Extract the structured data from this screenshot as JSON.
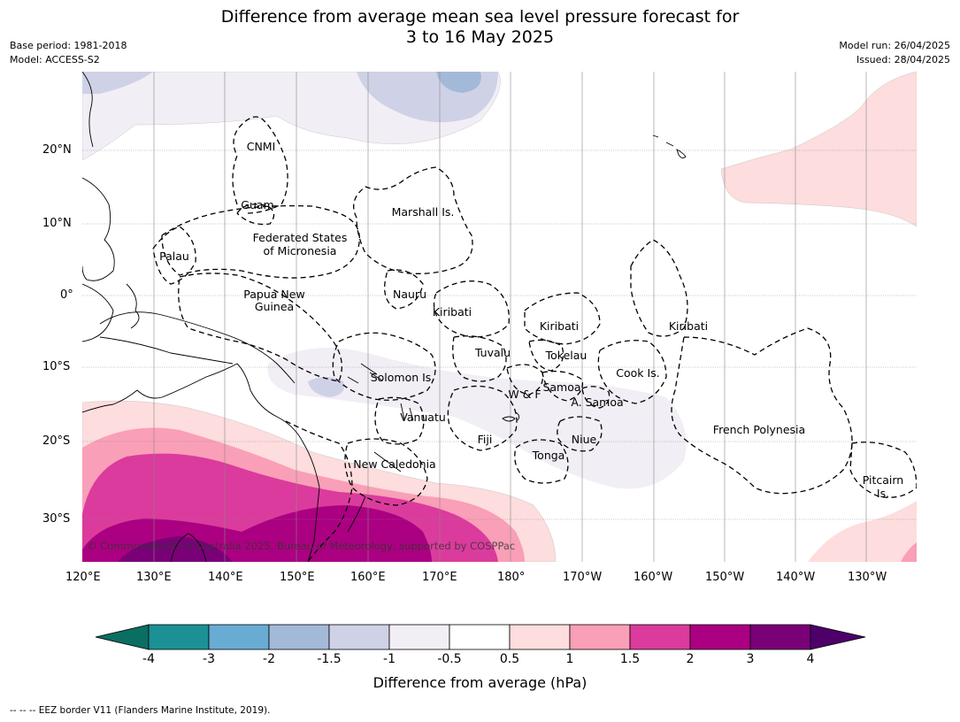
{
  "title": {
    "line1": "Difference from average mean sea level pressure forecast for",
    "line2": "3 to 16 May 2025"
  },
  "meta": {
    "base_period": "Base period: 1981-2018",
    "model": "Model: ACCESS-S2",
    "model_run": "Model run: 26/04/2025",
    "issued": "Issued: 28/04/2025"
  },
  "map": {
    "lon_labels": [
      "120°E",
      "130°E",
      "140°E",
      "150°E",
      "160°E",
      "170°E",
      "180°",
      "170°W",
      "160°W",
      "150°W",
      "140°W",
      "130°W"
    ],
    "lat_labels": [
      "20°N",
      "10°N",
      "0°",
      "10°S",
      "20°S",
      "30°S"
    ],
    "places": [
      "CNMI",
      "Guam",
      "Marshall Is.",
      "Palau",
      "Federated States",
      "of Micronesia",
      "Papua New",
      "Guinea",
      "Nauru",
      "Kiribati",
      "Kiribati",
      "Kiribati",
      "Tuvalu",
      "Tokelau",
      "Cook Is.",
      "Samoa",
      "W & F",
      "A. Samoa",
      "Solomon Is.",
      "Vanuatu",
      "Fiji",
      "Niue",
      "Tonga",
      "French Polynesia",
      "New Caledonia",
      "Pitcairn",
      "Is."
    ],
    "copyright": "© Commonwealth of Australia 2025, Bureau of Meteorology, supported by COSPPac"
  },
  "colorbar": {
    "ticks": [
      "-4",
      "-3",
      "-2",
      "-1.5",
      "-1",
      "-0.5",
      "0.5",
      "1",
      "1.5",
      "2",
      "3",
      "4"
    ],
    "colors": [
      "#0b6e63",
      "#1b9196",
      "#68acd4",
      "#a3b9d8",
      "#cfd1e6",
      "#f2eef5",
      "#ffffff",
      "#fddddd",
      "#f99fb7",
      "#db3b9c",
      "#ab0081",
      "#7a0077",
      "#4d006a"
    ],
    "label": "Difference from average (hPa)"
  },
  "footer": "--  --  -- EEZ border V11 (Flanders Marine Institute, 2019)."
}
